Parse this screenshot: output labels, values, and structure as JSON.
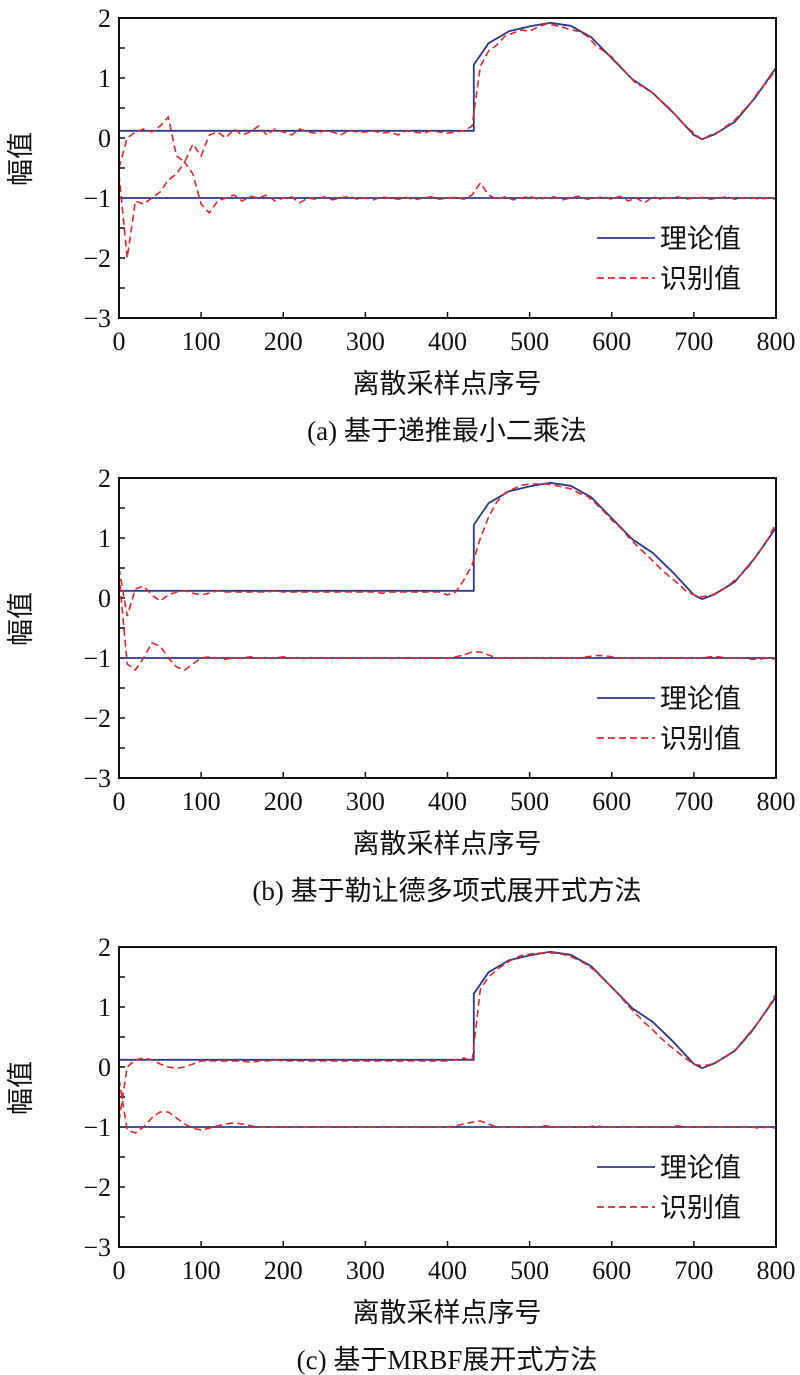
{
  "colors": {
    "theory": "#2b3a8f",
    "identified": "#e8262a",
    "axis": "#111111"
  },
  "legend": {
    "theory": "理论值",
    "identified": "识别值"
  },
  "chart_data": [
    {
      "type": "line",
      "caption": "(a) 基于递推最小二乘法",
      "xlabel": "离散采样点序号",
      "ylabel": "幅值",
      "xlim": [
        0,
        800
      ],
      "ylim": [
        -3,
        2
      ],
      "xticks": [
        "0",
        "100",
        "200",
        "300",
        "400",
        "500",
        "600",
        "700",
        "800"
      ],
      "yticks": [
        "2",
        "1",
        "0",
        "−1",
        "−2",
        "−3"
      ],
      "legend_position": "lower-right",
      "identified_upper": [
        -0.5,
        0.0,
        0.1,
        0.15,
        0.1,
        0.2,
        0.35,
        -0.3,
        -0.4,
        -0.1,
        -0.3,
        0.05,
        0.1,
        0.0,
        0.15,
        0.05,
        0.1,
        0.2,
        0.05,
        0.15,
        0.1,
        0.05,
        0.15,
        0.1,
        0.08,
        0.12,
        0.1,
        0.05,
        0.13,
        0.1,
        0.1,
        0.12,
        0.08,
        0.1,
        0.05,
        0.12,
        0.1,
        0.08,
        0.12,
        0.1,
        0.08,
        0.1,
        0.12,
        0.2,
        1.2,
        1.45,
        1.55,
        1.7,
        1.75,
        1.8,
        1.78,
        1.85,
        1.9,
        1.88,
        1.85,
        1.8,
        1.78,
        1.7,
        1.55,
        1.45,
        1.35,
        1.2,
        1.05,
        0.9,
        0.85,
        0.75,
        0.62,
        0.5,
        0.35,
        0.2,
        0.08,
        -0.03,
        0.05,
        0.1,
        0.2,
        0.3,
        0.45,
        0.6,
        0.8,
        0.95,
        1.15
      ],
      "identified_lower": [
        -0.6,
        -2.0,
        -1.05,
        -1.1,
        -1.0,
        -0.9,
        -0.7,
        -0.6,
        -0.4,
        -0.6,
        -1.1,
        -1.25,
        -1.05,
        -1.0,
        -0.95,
        -1.05,
        -0.97,
        -1.0,
        -0.95,
        -1.05,
        -1.0,
        -0.98,
        -1.08,
        -1.0,
        -1.02,
        -0.98,
        -1.03,
        -1.0,
        -0.97,
        -1.02,
        -1.0,
        -1.03,
        -0.98,
        -1.0,
        -1.02,
        -0.99,
        -1.03,
        -1.0,
        -0.98,
        -1.02,
        -1.0,
        -0.99,
        -1.02,
        -0.95,
        -0.75,
        -0.95,
        -1.02,
        -0.98,
        -1.03,
        -1.0,
        -0.97,
        -1.02,
        -1.0,
        -0.98,
        -1.03,
        -1.0,
        -0.97,
        -1.02,
        -1.0,
        -0.98,
        -1.02,
        -0.97,
        -1.05,
        -1.0,
        -1.08,
        -0.98,
        -1.02,
        -1.0,
        -0.98,
        -1.02,
        -1.0,
        -0.99,
        -1.02,
        -1.0,
        -0.98,
        -1.02,
        -1.0,
        -0.99,
        -1.02,
        -1.0,
        -1.02
      ]
    },
    {
      "type": "line",
      "caption": "(b) 基于勒让德多项式展开式方法",
      "xlabel": "离散采样点序号",
      "ylabel": "幅值",
      "xlim": [
        0,
        800
      ],
      "ylim": [
        -3,
        2
      ],
      "xticks": [
        "0",
        "100",
        "200",
        "300",
        "400",
        "500",
        "600",
        "700",
        "800"
      ],
      "yticks": [
        "2",
        "1",
        "0",
        "−1",
        "−2",
        "−3"
      ],
      "legend_position": "lower-right",
      "identified_upper": [
        0.5,
        -0.3,
        0.15,
        0.2,
        0.05,
        -0.05,
        0.05,
        0.1,
        0.12,
        0.08,
        0.05,
        0.08,
        0.12,
        0.1,
        0.1,
        0.1,
        0.1,
        0.1,
        0.1,
        0.12,
        0.1,
        0.1,
        0.1,
        0.1,
        0.1,
        0.1,
        0.1,
        0.1,
        0.1,
        0.1,
        0.1,
        0.1,
        0.08,
        0.1,
        0.1,
        0.1,
        0.1,
        0.1,
        0.1,
        0.1,
        0.05,
        0.1,
        0.3,
        0.55,
        1.0,
        1.35,
        1.6,
        1.75,
        1.82,
        1.88,
        1.9,
        1.9,
        1.9,
        1.88,
        1.85,
        1.82,
        1.75,
        1.7,
        1.58,
        1.45,
        1.3,
        1.18,
        1.02,
        0.88,
        0.75,
        0.62,
        0.48,
        0.36,
        0.25,
        0.12,
        0.05,
        0.02,
        0.04,
        0.1,
        0.18,
        0.3,
        0.42,
        0.58,
        0.78,
        0.98,
        1.25
      ],
      "identified_lower": [
        0.4,
        -1.1,
        -1.2,
        -1.0,
        -0.75,
        -0.8,
        -1.0,
        -1.15,
        -1.2,
        -1.1,
        -1.0,
        -0.98,
        -1.0,
        -1.02,
        -1.0,
        -1.0,
        -0.98,
        -1.0,
        -1.0,
        -1.0,
        -0.98,
        -1.0,
        -1.0,
        -1.0,
        -1.0,
        -1.0,
        -1.0,
        -1.0,
        -1.0,
        -1.0,
        -1.0,
        -1.0,
        -1.0,
        -1.0,
        -1.0,
        -1.0,
        -1.0,
        -1.0,
        -1.0,
        -1.0,
        -1.0,
        -0.98,
        -0.95,
        -0.9,
        -0.9,
        -0.95,
        -1.0,
        -1.0,
        -1.0,
        -1.0,
        -1.0,
        -1.0,
        -1.0,
        -1.0,
        -1.0,
        -1.0,
        -1.0,
        -0.98,
        -0.96,
        -0.96,
        -0.98,
        -1.0,
        -1.0,
        -1.0,
        -1.0,
        -1.0,
        -1.0,
        -1.0,
        -1.0,
        -1.0,
        -1.0,
        -1.0,
        -0.98,
        -0.98,
        -1.0,
        -1.0,
        -1.0,
        -1.02,
        -1.02,
        -1.0,
        -1.02
      ]
    },
    {
      "type": "line",
      "caption": "(c) 基于MRBF展开式方法",
      "xlabel": "离散采样点序号",
      "ylabel": "幅值",
      "xlim": [
        0,
        800
      ],
      "ylim": [
        -3,
        2
      ],
      "xticks": [
        "0",
        "100",
        "200",
        "300",
        "400",
        "500",
        "600",
        "700",
        "800"
      ],
      "yticks": [
        "2",
        "1",
        "0",
        "−1",
        "−2",
        "−3"
      ],
      "legend_position": "lower-right",
      "identified_upper": [
        -0.9,
        0.0,
        0.12,
        0.15,
        0.12,
        0.05,
        0.0,
        -0.02,
        0.0,
        0.05,
        0.1,
        0.1,
        0.1,
        0.1,
        0.1,
        0.1,
        0.08,
        0.1,
        0.1,
        0.12,
        0.1,
        0.1,
        0.1,
        0.1,
        0.1,
        0.1,
        0.1,
        0.1,
        0.1,
        0.1,
        0.1,
        0.1,
        0.1,
        0.1,
        0.1,
        0.1,
        0.1,
        0.1,
        0.1,
        0.1,
        0.1,
        0.12,
        0.15,
        0.1,
        1.3,
        1.5,
        1.62,
        1.72,
        1.8,
        1.86,
        1.88,
        1.9,
        1.9,
        1.9,
        1.88,
        1.84,
        1.78,
        1.7,
        1.6,
        1.46,
        1.33,
        1.18,
        1.02,
        0.88,
        0.74,
        0.62,
        0.48,
        0.36,
        0.25,
        0.14,
        0.05,
        0.02,
        0.04,
        0.1,
        0.18,
        0.28,
        0.42,
        0.58,
        0.78,
        0.98,
        1.22
      ],
      "identified_lower": [
        -0.2,
        -1.05,
        -1.1,
        -1.0,
        -0.85,
        -0.75,
        -0.75,
        -0.85,
        -0.95,
        -1.02,
        -1.05,
        -1.02,
        -0.98,
        -0.95,
        -0.93,
        -0.95,
        -0.98,
        -1.0,
        -1.0,
        -1.0,
        -1.0,
        -1.0,
        -1.0,
        -1.0,
        -1.0,
        -1.0,
        -1.0,
        -1.0,
        -1.0,
        -1.0,
        -1.0,
        -1.0,
        -1.0,
        -1.0,
        -1.0,
        -1.0,
        -1.0,
        -1.0,
        -1.0,
        -1.0,
        -1.0,
        -0.98,
        -0.95,
        -0.92,
        -0.9,
        -0.95,
        -1.0,
        -1.0,
        -1.0,
        -1.0,
        -1.0,
        -1.0,
        -0.98,
        -1.0,
        -1.0,
        -1.0,
        -1.0,
        -1.0,
        -0.98,
        -1.0,
        -1.0,
        -1.0,
        -1.0,
        -1.0,
        -1.0,
        -1.0,
        -1.0,
        -1.0,
        -0.98,
        -1.0,
        -1.0,
        -1.0,
        -1.0,
        -1.0,
        -1.0,
        -1.0,
        -1.0,
        -1.0,
        -1.02,
        -1.0,
        -1.02
      ]
    }
  ],
  "theory_upper": [
    [
      0,
      0.12
    ],
    [
      432,
      0.12
    ],
    [
      432,
      1.22
    ],
    [
      450,
      1.58
    ],
    [
      475,
      1.78
    ],
    [
      500,
      1.86
    ],
    [
      525,
      1.92
    ],
    [
      550,
      1.87
    ],
    [
      575,
      1.68
    ],
    [
      600,
      1.33
    ],
    [
      625,
      0.98
    ],
    [
      650,
      0.75
    ],
    [
      675,
      0.42
    ],
    [
      700,
      0.05
    ],
    [
      710,
      -0.02
    ],
    [
      725,
      0.06
    ],
    [
      750,
      0.27
    ],
    [
      775,
      0.68
    ],
    [
      800,
      1.17
    ]
  ],
  "theory_lower": [
    [
      0,
      -1.0
    ],
    [
      800,
      -1.0
    ]
  ],
  "x_step": 10
}
